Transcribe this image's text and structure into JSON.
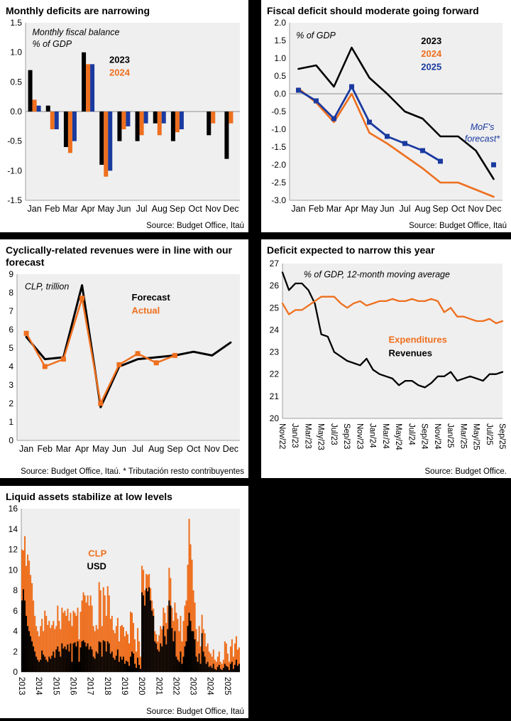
{
  "colors": {
    "orange": "#EE6F1E",
    "blue": "#1A3AA0",
    "black": "#000000",
    "plot_bg": "#EFEFEF"
  },
  "chart_data": [
    {
      "id": "monthly-deficits",
      "type": "bar",
      "title": "Monthly deficits are narrowing",
      "source": "Source: Budget Office, Itaú",
      "ylim": [
        -1.5,
        1.5
      ],
      "yticks": [
        1.5,
        1.0,
        0.5,
        0.0,
        -0.5,
        -1.0,
        -1.5
      ],
      "ytick_labels": [
        "1.5",
        "1.0",
        "0.5",
        "0.0",
        "-0.5",
        "-1.0",
        "-1.5"
      ],
      "x_labels": [
        "Jan",
        "Feb",
        "Mar",
        "Apr",
        "May",
        "Jun",
        "Jul",
        "Aug",
        "Sep",
        "Oct",
        "Nov",
        "Dec"
      ],
      "x_mode": "center",
      "n_points": 12,
      "zero_line": true,
      "plot_bg": "#EFEFEF",
      "series": [
        {
          "name": "2023",
          "color": "#000000",
          "type": "bar",
          "bar_index": 0,
          "values": [
            0.7,
            0.1,
            -0.6,
            1.0,
            -0.9,
            -0.5,
            -0.5,
            -0.2,
            -0.5,
            0,
            -0.4,
            -0.8
          ]
        },
        {
          "name": "2024",
          "color": "#EE6F1E",
          "type": "bar",
          "bar_index": 1,
          "values": [
            0.2,
            -0.3,
            -0.7,
            0.8,
            -1.1,
            -0.3,
            -0.4,
            -0.4,
            -0.35,
            0,
            -0.2,
            -0.2
          ]
        },
        {
          "name": "2025",
          "color": "#1A3AA0",
          "type": "bar",
          "bar_index": 2,
          "values": [
            0.1,
            -0.3,
            -0.5,
            0.8,
            -1.0,
            -0.25,
            -0.2,
            -0.2,
            -0.3,
            null,
            null,
            null
          ]
        }
      ],
      "annotations": [
        {
          "lines": [
            "Monthly fiscal balance",
            "% of GDP"
          ],
          "color": "#000000",
          "italic": true,
          "bold": false,
          "size": 12.5,
          "x": 0.13,
          "y": 0.085,
          "anchor": "start"
        },
        {
          "lines": [
            "2023"
          ],
          "color": "#000000",
          "italic": false,
          "bold": true,
          "size": 13,
          "x": 0.44,
          "y": 0.225,
          "anchor": "start"
        },
        {
          "lines": [
            "2024"
          ],
          "color": "#EE6F1E",
          "italic": false,
          "bold": true,
          "size": 13,
          "x": 0.44,
          "y": 0.29,
          "anchor": "start"
        }
      ]
    },
    {
      "id": "fiscal-deficit-forward",
      "type": "line",
      "title": "Fiscal deficit should moderate going forward",
      "source": "Source: Budget Office, Itaú",
      "ylim": [
        -3.0,
        2.0
      ],
      "yticks": [
        2.0,
        1.5,
        1.0,
        0.5,
        0.0,
        -0.5,
        -1.0,
        -1.5,
        -2.0,
        -2.5,
        -3.0
      ],
      "ytick_labels": [
        "2.0",
        "1.5",
        "1.0",
        "0.5",
        "0.0",
        "-0.5",
        "-1.0",
        "-1.5",
        "-2.0",
        "-2.5",
        "-3.0"
      ],
      "x_labels": [
        "Jan",
        "Feb",
        "Mar",
        "Apr",
        "May",
        "Jun",
        "Jul",
        "Aug",
        "Sep",
        "Oct",
        "Nov",
        "Dec"
      ],
      "x_mode": "center",
      "n_points": 12,
      "zero_line": true,
      "plot_bg": "#EFEFEF",
      "series": [
        {
          "name": "2023",
          "color": "#000000",
          "type": "line",
          "width": 2.6,
          "values": [
            0.7,
            0.8,
            0.2,
            1.3,
            0.45,
            0.0,
            -0.5,
            -0.7,
            -1.2,
            -1.2,
            -1.6,
            -2.4
          ]
        },
        {
          "name": "2024",
          "color": "#EE6F1E",
          "type": "line",
          "width": 2.6,
          "values": [
            0.15,
            -0.25,
            -0.8,
            0.0,
            -1.1,
            -1.4,
            -1.75,
            -2.1,
            -2.5,
            -2.5,
            -2.7,
            -2.9
          ]
        },
        {
          "name": "2025",
          "color": "#1A3AA0",
          "type": "line",
          "width": 2.8,
          "marker": true,
          "values": [
            0.1,
            -0.2,
            -0.7,
            0.2,
            -0.8,
            -1.2,
            -1.4,
            -1.6,
            -1.9,
            null,
            null,
            null
          ]
        },
        {
          "name": "MoF's forecast point",
          "color": "#1A3AA0",
          "type": "scatter",
          "values": [
            null,
            null,
            null,
            null,
            null,
            null,
            null,
            null,
            null,
            null,
            null,
            -2.0
          ]
        }
      ],
      "annotations": [
        {
          "lines": [
            "% of GDP"
          ],
          "color": "#000000",
          "italic": true,
          "bold": false,
          "size": 12.5,
          "x": 0.14,
          "y": 0.1,
          "anchor": "start"
        },
        {
          "lines": [
            "2023"
          ],
          "color": "#000000",
          "italic": false,
          "bold": true,
          "size": 13,
          "x": 0.64,
          "y": 0.13,
          "anchor": "start"
        },
        {
          "lines": [
            "2024"
          ],
          "color": "#EE6F1E",
          "italic": false,
          "bold": true,
          "size": 13,
          "x": 0.64,
          "y": 0.195,
          "anchor": "start"
        },
        {
          "lines": [
            "2025"
          ],
          "color": "#1A3AA0",
          "italic": false,
          "bold": true,
          "size": 13,
          "x": 0.64,
          "y": 0.26,
          "anchor": "start"
        },
        {
          "lines": [
            "MoF's",
            "forecast*"
          ],
          "color": "#1A3AA0",
          "italic": true,
          "bold": false,
          "size": 12.5,
          "x": 0.885,
          "y": 0.565,
          "anchor": "middle"
        }
      ]
    },
    {
      "id": "cyclical-revenues",
      "type": "line",
      "title": "Cyclically-related revenues were in line with our forecast",
      "source": "Source: Budget Office, Itaú. * Tributación resto contribuyentes",
      "ylim": [
        0,
        9
      ],
      "yticks": [
        9,
        8,
        7,
        6,
        5,
        4,
        3,
        2,
        1,
        0
      ],
      "ytick_labels": [
        "9",
        "8",
        "7",
        "6",
        "5",
        "4",
        "3",
        "2",
        "1",
        "0"
      ],
      "x_labels": [
        "Jan",
        "Feb",
        "Mar",
        "Apr",
        "May",
        "Jun",
        "Jul",
        "Aug",
        "Sep",
        "Oct",
        "Nov",
        "Dec"
      ],
      "x_mode": "center",
      "n_points": 12,
      "zero_line": false,
      "plot_bg": "#EFEFEF",
      "series": [
        {
          "name": "Forecast",
          "color": "#000000",
          "type": "line",
          "width": 3,
          "values": [
            5.6,
            4.4,
            4.5,
            8.4,
            1.8,
            4.0,
            4.4,
            4.5,
            4.6,
            4.8,
            4.6,
            5.3
          ]
        },
        {
          "name": "Actual",
          "color": "#EE6F1E",
          "type": "line",
          "width": 2.5,
          "marker": true,
          "values": [
            5.8,
            4.0,
            4.4,
            7.7,
            2.0,
            4.1,
            4.7,
            4.2,
            4.6,
            null,
            null,
            null
          ]
        }
      ],
      "annotations": [
        {
          "lines": [
            "CLP, trillion"
          ],
          "color": "#000000",
          "italic": true,
          "bold": false,
          "size": 12.5,
          "x": 0.1,
          "y": 0.105,
          "anchor": "start"
        },
        {
          "lines": [
            "Forecast"
          ],
          "color": "#000000",
          "italic": false,
          "bold": true,
          "size": 13,
          "x": 0.53,
          "y": 0.165,
          "anchor": "start"
        },
        {
          "lines": [
            "Actual"
          ],
          "color": "#EE6F1E",
          "italic": false,
          "bold": true,
          "size": 13,
          "x": 0.53,
          "y": 0.235,
          "anchor": "start"
        }
      ]
    },
    {
      "id": "deficit-narrow",
      "type": "line",
      "title": "Deficit expected to narrow this year",
      "source": "Source: Budget Office.",
      "ylim": [
        20,
        27
      ],
      "yticks": [
        27,
        26,
        25,
        24,
        23,
        22,
        21,
        20
      ],
      "ytick_labels": [
        "27",
        "26",
        "25",
        "24",
        "23",
        "22",
        "21",
        "20"
      ],
      "x_labels": [
        "Nov/22",
        "Jan/23",
        "Mar/23",
        "May/23",
        "Jul/23",
        "Sep/23",
        "Nov/23",
        "Jan/24",
        "Mar/24",
        "May/24",
        "Jul/24",
        "Sep/24",
        "Nov/24",
        "Jan/25",
        "Mar/25",
        "May/25",
        "Jul/25",
        "Sep/25"
      ],
      "xtick_idx": [
        0,
        2,
        4,
        6,
        8,
        10,
        12,
        14,
        16,
        18,
        20,
        22,
        24,
        26,
        28,
        30,
        32,
        34
      ],
      "x_mode": "edge",
      "n_points": 35,
      "zero_line": false,
      "plot_bg": "#EFEFEF",
      "series": [
        {
          "name": "Revenues",
          "color": "#000000",
          "type": "line",
          "width": 2.3,
          "values": [
            26.6,
            25.8,
            26.1,
            26.1,
            25.8,
            25.2,
            23.8,
            23.7,
            23.0,
            22.8,
            22.6,
            22.5,
            22.4,
            22.7,
            22.2,
            22.0,
            21.9,
            21.8,
            21.5,
            21.7,
            21.7,
            21.5,
            21.4,
            21.6,
            21.9,
            21.9,
            22.1,
            21.7,
            21.8,
            21.9,
            21.8,
            21.7,
            22.0,
            22.0,
            22.1
          ]
        },
        {
          "name": "Expenditures",
          "color": "#EE6F1E",
          "type": "line",
          "width": 2.3,
          "values": [
            25.2,
            24.7,
            24.9,
            24.9,
            25.1,
            25.3,
            25.5,
            25.5,
            25.5,
            25.2,
            25.0,
            25.2,
            25.3,
            25.1,
            25.2,
            25.3,
            25.3,
            25.4,
            25.3,
            25.3,
            25.4,
            25.3,
            25.3,
            25.4,
            25.3,
            24.8,
            25.0,
            24.6,
            24.6,
            24.5,
            24.4,
            24.4,
            24.5,
            24.3,
            24.4
          ]
        }
      ],
      "annotations": [
        {
          "lines": [
            "% of GDP, 12-month moving average"
          ],
          "color": "#000000",
          "italic": true,
          "bold": false,
          "size": 12.5,
          "x": 0.17,
          "y": 0.095,
          "anchor": "start"
        },
        {
          "lines": [
            "Expenditures"
          ],
          "color": "#EE6F1E",
          "italic": false,
          "bold": true,
          "size": 13,
          "x": 0.51,
          "y": 0.41,
          "anchor": "start"
        },
        {
          "lines": [
            "Revenues"
          ],
          "color": "#000000",
          "italic": false,
          "bold": true,
          "size": 13,
          "x": 0.51,
          "y": 0.475,
          "anchor": "start"
        }
      ]
    },
    {
      "id": "liquid-assets",
      "type": "stackedbar",
      "title": "Liquid assets stabilize at low levels",
      "source": "Source: Budget Office, Itaú",
      "ylim": [
        0,
        16
      ],
      "yticks": [
        16,
        14,
        12,
        10,
        8,
        6,
        4,
        2,
        0
      ],
      "ytick_labels": [
        "16",
        "14",
        "12",
        "10",
        "8",
        "6",
        "4",
        "2",
        "0"
      ],
      "x_labels": [
        "2013",
        "2014",
        "2015",
        "2016",
        "2017",
        "2018",
        "2019",
        "2020",
        "2021",
        "2022",
        "2023",
        "2024",
        "2025"
      ],
      "xtick_idx": [
        0,
        12,
        24,
        36,
        48,
        60,
        72,
        84,
        96,
        108,
        120,
        132,
        144
      ],
      "x_mode": "center",
      "n_points": 153,
      "zero_line": false,
      "plot_bg": "#EFEFEF",
      "series": [
        {
          "name": "USD",
          "color": "#000000",
          "type": "stack",
          "values": [
            7.0,
            8.1,
            7.0,
            5.5,
            4.5,
            4.0,
            3.5,
            3.0,
            2.5,
            2.0,
            1.5,
            1.2,
            1.0,
            1.2,
            2.1,
            1.7,
            1.5,
            1.2,
            1.0,
            1.5,
            1.3,
            1.6,
            2.0,
            1.4,
            2.2,
            2.5,
            2.0,
            1.5,
            2.8,
            2.3,
            2.5,
            2.2,
            2.7,
            2.0,
            2.8,
            1.0,
            2.8,
            2.9,
            2.5,
            3.0,
            1.0,
            2.4,
            3.0,
            3.1,
            2.9,
            2.5,
            2.8,
            2.2,
            2.5,
            2.2,
            1.5,
            1.3,
            2.0,
            1.8,
            3.0,
            2.9,
            1.5,
            3.1,
            3.0,
            2.0,
            3.0,
            2.8,
            1.8,
            2.0,
            1.4,
            1.2,
            1.6,
            2.2,
            1.0,
            1.5,
            1.2,
            1.5,
            0.8,
            1.1,
            1.0,
            0.6,
            1.5,
            2.0,
            1.8,
            0.8,
            0.4,
            1.4,
            0.7,
            0.3,
            7.8,
            7.5,
            6.5,
            8.2,
            7.9,
            8.3,
            7.0,
            6.0,
            5.5,
            3.0,
            2.8,
            2.2,
            2.0,
            2.8,
            2.5,
            4.5,
            3.5,
            2.7,
            4.2,
            7.0,
            6.5,
            4.3,
            3.0,
            4.0,
            1.5,
            1.2,
            1.0,
            2.0,
            0.8,
            1.5,
            2.5,
            3.0,
            4.5,
            5.8,
            5.0,
            4.0,
            4.0,
            3.2,
            1.5,
            1.0,
            1.8,
            0.8,
            3.8,
            2.0,
            1.5,
            0.8,
            1.0,
            0.5,
            0.6,
            0.4,
            0.8,
            0.3,
            0.2,
            0.5,
            0.7,
            0.3,
            0.2,
            0.4,
            0.8,
            0.6,
            0.5,
            0.2,
            0.8,
            1.0,
            0.3,
            0.7,
            1.2,
            0.6,
            0.8
          ]
        },
        {
          "name": "CLP",
          "color": "#EE6F1E",
          "type": "stack",
          "values": [
            5.0,
            3.8,
            6.3,
            4.9,
            7.0,
            6.9,
            6.0,
            5.7,
            4.5,
            3.5,
            3.0,
            2.8,
            2.5,
            3.3,
            3.1,
            2.3,
            4.5,
            4.3,
            3.6,
            3.5,
            3.0,
            3.0,
            3.0,
            2.8,
            2.3,
            4.0,
            3.0,
            2.7,
            3.5,
            3.5,
            3.5,
            3.3,
            3.5,
            3.0,
            3.0,
            3.5,
            3.2,
            2.9,
            3.0,
            3.3,
            2.2,
            3.5,
            4.0,
            4.7,
            4.6,
            4.3,
            4.7,
            4.3,
            5.0,
            4.3,
            3.0,
            2.7,
            2.6,
            2.4,
            5.8,
            5.1,
            3.0,
            5.2,
            4.5,
            3.5,
            5.4,
            4.7,
            3.4,
            3.5,
            2.7,
            2.6,
            2.9,
            3.1,
            2.0,
            3.0,
            3.4,
            2.9,
            2.7,
            2.9,
            2.7,
            2.2,
            4.4,
            3.8,
            3.0,
            2.4,
            1.6,
            2.9,
            2.3,
            1.2,
            2.6,
            2.5,
            1.5,
            1.4,
            1.6,
            1.3,
            1.2,
            1.0,
            0.7,
            1.0,
            0.9,
            0.8,
            1.6,
            1.7,
            1.7,
            1.8,
            2.3,
            2.1,
            2.3,
            3.2,
            2.7,
            2.0,
            2.0,
            2.8,
            4.3,
            4.0,
            3.0,
            3.5,
            2.2,
            3.5,
            4.0,
            4.0,
            6.0,
            9.2,
            7.5,
            7.0,
            4.0,
            3.6,
            2.7,
            2.0,
            2.7,
            1.7,
            1.8,
            2.2,
            2.3,
            1.7,
            1.8,
            1.5,
            1.2,
            1.1,
            1.4,
            0.9,
            0.8,
            1.0,
            1.3,
            0.7,
            0.6,
            0.8,
            2.2,
            2.2,
            1.3,
            0.8,
            1.7,
            2.2,
            1.2,
            2.1,
            2.3,
            1.6,
            1.6
          ]
        }
      ],
      "annotations": [
        {
          "lines": [
            "CLP"
          ],
          "color": "#EE6F1E",
          "italic": false,
          "bold": true,
          "size": 13,
          "x": 0.355,
          "y": 0.26,
          "anchor": "start"
        },
        {
          "lines": [
            "USD"
          ],
          "color": "#000000",
          "italic": false,
          "bold": true,
          "size": 13,
          "x": 0.35,
          "y": 0.325,
          "anchor": "start"
        }
      ]
    }
  ]
}
